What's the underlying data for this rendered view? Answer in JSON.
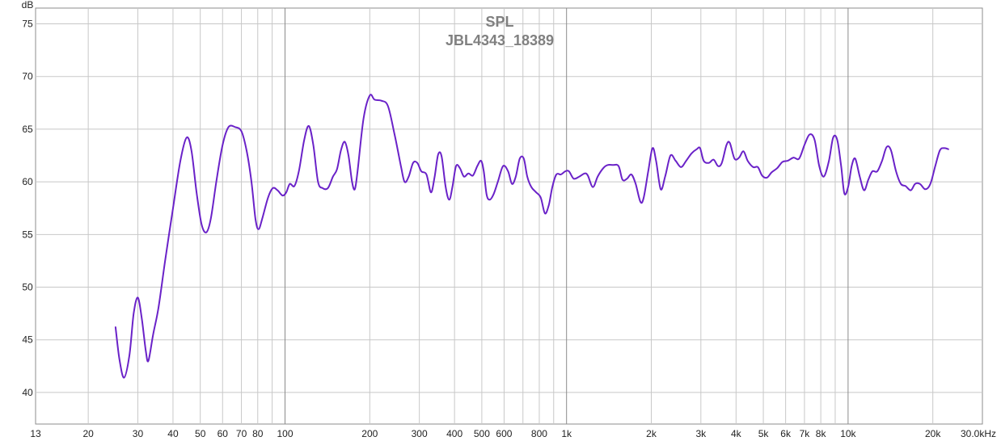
{
  "chart_data": {
    "type": "line",
    "title": "SPL",
    "subtitle": "JBL4343_18389",
    "ylabel": "dB",
    "xunit_label": "30.0kHz",
    "xscale": "log",
    "xlim": [
      13,
      30000
    ],
    "ylim": [
      37,
      76.5
    ],
    "grid": true,
    "legend": "none",
    "line_color": "#6a22c8",
    "grid_color": "#c8c8c8",
    "decade_grid_color": "#8c8c8c",
    "y_ticks": [
      40,
      45,
      50,
      55,
      60,
      65,
      70,
      75
    ],
    "y_tick_labels": [
      "40",
      "45",
      "50",
      "55",
      "60",
      "65",
      "70",
      "75"
    ],
    "x_tick_values": [
      13,
      20,
      30,
      40,
      50,
      60,
      70,
      80,
      100,
      200,
      300,
      400,
      500,
      600,
      800,
      1000,
      2000,
      3000,
      4000,
      5000,
      6000,
      7000,
      8000,
      10000,
      20000
    ],
    "x_tick_labels": [
      "13",
      "20",
      "30",
      "40",
      "50",
      "60",
      "70",
      "80",
      "100",
      "200",
      "300",
      "400",
      "500",
      "600",
      "800",
      "1k",
      "2k",
      "3k",
      "4k",
      "5k",
      "6k",
      "7k",
      "8k",
      "10k",
      "20k"
    ],
    "x_grid": [
      20,
      30,
      40,
      50,
      60,
      70,
      80,
      90,
      100,
      200,
      300,
      400,
      500,
      600,
      700,
      800,
      900,
      1000,
      2000,
      3000,
      4000,
      5000,
      6000,
      7000,
      8000,
      9000,
      10000,
      20000
    ],
    "x_decades": [
      100,
      1000,
      10000
    ],
    "series": [
      {
        "values": [
          [
            25,
            46.2
          ],
          [
            25.8,
            43.2
          ],
          [
            26.8,
            41.4
          ],
          [
            28,
            43.5
          ],
          [
            29,
            47.5
          ],
          [
            30,
            49.0
          ],
          [
            31,
            47.0
          ],
          [
            32,
            44.0
          ],
          [
            32.7,
            43.0
          ],
          [
            34,
            45.5
          ],
          [
            35.5,
            48.0
          ],
          [
            37.5,
            52.5
          ],
          [
            40,
            57.5
          ],
          [
            42.5,
            62.0
          ],
          [
            44.7,
            64.2
          ],
          [
            46.5,
            63.0
          ],
          [
            48.5,
            59.0
          ],
          [
            50.5,
            56.0
          ],
          [
            52.5,
            55.2
          ],
          [
            54.5,
            56.5
          ],
          [
            57,
            60.0
          ],
          [
            60,
            63.5
          ],
          [
            63,
            65.2
          ],
          [
            66.5,
            65.2
          ],
          [
            70,
            64.8
          ],
          [
            73,
            63.0
          ],
          [
            76,
            60.0
          ],
          [
            78.5,
            56.5
          ],
          [
            80.5,
            55.5
          ],
          [
            83,
            56.5
          ],
          [
            87,
            58.5
          ],
          [
            90.5,
            59.4
          ],
          [
            94,
            59.2
          ],
          [
            98,
            58.7
          ],
          [
            101,
            59.0
          ],
          [
            104,
            59.8
          ],
          [
            108,
            59.6
          ],
          [
            112,
            61.0
          ],
          [
            117,
            64.0
          ],
          [
            121.5,
            65.3
          ],
          [
            126,
            63.5
          ],
          [
            131,
            60.0
          ],
          [
            136,
            59.4
          ],
          [
            142,
            59.4
          ],
          [
            148,
            60.5
          ],
          [
            153,
            61.2
          ],
          [
            158,
            63.0
          ],
          [
            163,
            63.8
          ],
          [
            168,
            62.5
          ],
          [
            173,
            60.0
          ],
          [
            177,
            59.3
          ],
          [
            181,
            61.0
          ],
          [
            190,
            66.0
          ],
          [
            200,
            68.2
          ],
          [
            208,
            67.8
          ],
          [
            220,
            67.7
          ],
          [
            232,
            67.2
          ],
          [
            245,
            64.5
          ],
          [
            258,
            61.5
          ],
          [
            266,
            60.0
          ],
          [
            275,
            60.5
          ],
          [
            285,
            61.8
          ],
          [
            295,
            61.8
          ],
          [
            305,
            61.0
          ],
          [
            318,
            60.7
          ],
          [
            330,
            59.0
          ],
          [
            340,
            60.5
          ],
          [
            350,
            62.6
          ],
          [
            360,
            62.4
          ],
          [
            372,
            59.5
          ],
          [
            383,
            58.3
          ],
          [
            393,
            59.5
          ],
          [
            405,
            61.5
          ],
          [
            418,
            61.3
          ],
          [
            432,
            60.5
          ],
          [
            448,
            60.8
          ],
          [
            465,
            60.6
          ],
          [
            482,
            61.5
          ],
          [
            497,
            62.0
          ],
          [
            508,
            61.0
          ],
          [
            520,
            58.8
          ],
          [
            533,
            58.3
          ],
          [
            550,
            58.8
          ],
          [
            570,
            60.0
          ],
          [
            595,
            61.5
          ],
          [
            620,
            61.0
          ],
          [
            640,
            59.8
          ],
          [
            660,
            60.5
          ],
          [
            682,
            62.2
          ],
          [
            705,
            62.2
          ],
          [
            725,
            60.5
          ],
          [
            750,
            59.5
          ],
          [
            780,
            59.0
          ],
          [
            810,
            58.5
          ],
          [
            838,
            57.0
          ],
          [
            865,
            57.8
          ],
          [
            890,
            59.5
          ],
          [
            920,
            60.7
          ],
          [
            955,
            60.7
          ],
          [
            990,
            61.0
          ],
          [
            1020,
            61.0
          ],
          [
            1060,
            60.3
          ],
          [
            1110,
            60.5
          ],
          [
            1160,
            60.8
          ],
          [
            1190,
            60.6
          ],
          [
            1240,
            59.5
          ],
          [
            1290,
            60.5
          ],
          [
            1350,
            61.3
          ],
          [
            1400,
            61.6
          ],
          [
            1460,
            61.6
          ],
          [
            1530,
            61.5
          ],
          [
            1580,
            60.2
          ],
          [
            1640,
            60.3
          ],
          [
            1700,
            60.7
          ],
          [
            1760,
            59.8
          ],
          [
            1830,
            58.1
          ],
          [
            1880,
            58.5
          ],
          [
            1950,
            61.0
          ],
          [
            2020,
            63.2
          ],
          [
            2080,
            62.0
          ],
          [
            2160,
            59.3
          ],
          [
            2240,
            60.5
          ],
          [
            2340,
            62.5
          ],
          [
            2440,
            62.0
          ],
          [
            2550,
            61.4
          ],
          [
            2660,
            62.0
          ],
          [
            2780,
            62.7
          ],
          [
            2900,
            63.1
          ],
          [
            2980,
            63.2
          ],
          [
            3070,
            62.0
          ],
          [
            3200,
            61.8
          ],
          [
            3330,
            62.1
          ],
          [
            3450,
            61.5
          ],
          [
            3560,
            61.8
          ],
          [
            3700,
            63.5
          ],
          [
            3800,
            63.7
          ],
          [
            3950,
            62.2
          ],
          [
            4100,
            62.3
          ],
          [
            4250,
            62.9
          ],
          [
            4400,
            62.0
          ],
          [
            4600,
            61.4
          ],
          [
            4780,
            61.4
          ],
          [
            4950,
            60.6
          ],
          [
            5150,
            60.4
          ],
          [
            5350,
            60.9
          ],
          [
            5600,
            61.3
          ],
          [
            5850,
            61.9
          ],
          [
            6100,
            62.0
          ],
          [
            6400,
            62.3
          ],
          [
            6700,
            62.2
          ],
          [
            7000,
            63.5
          ],
          [
            7300,
            64.5
          ],
          [
            7600,
            64.0
          ],
          [
            7900,
            61.5
          ],
          [
            8200,
            60.5
          ],
          [
            8550,
            62.0
          ],
          [
            8850,
            64.2
          ],
          [
            9150,
            64.0
          ],
          [
            9450,
            61.5
          ],
          [
            9700,
            58.9
          ],
          [
            10000,
            59.5
          ],
          [
            10300,
            61.5
          ],
          [
            10600,
            62.2
          ],
          [
            11000,
            60.5
          ],
          [
            11400,
            59.2
          ],
          [
            11800,
            60.2
          ],
          [
            12200,
            61.0
          ],
          [
            12700,
            61.0
          ],
          [
            13200,
            62.0
          ],
          [
            13700,
            63.3
          ],
          [
            14200,
            63.0
          ],
          [
            14800,
            61.0
          ],
          [
            15400,
            59.8
          ],
          [
            16000,
            59.6
          ],
          [
            16700,
            59.2
          ],
          [
            17300,
            59.8
          ],
          [
            18000,
            59.8
          ],
          [
            18800,
            59.3
          ],
          [
            19600,
            59.8
          ],
          [
            20400,
            61.5
          ],
          [
            21200,
            63.0
          ],
          [
            22000,
            63.2
          ],
          [
            22700,
            63.1
          ]
        ]
      }
    ]
  }
}
